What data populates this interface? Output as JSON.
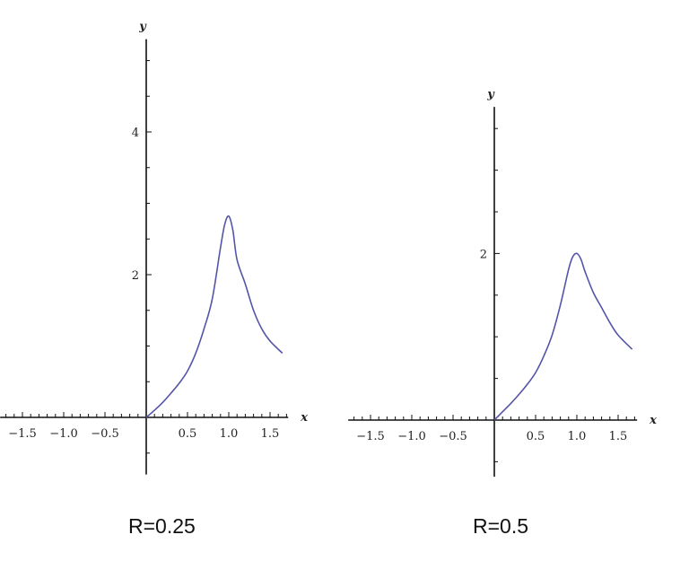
{
  "chart_data": [
    {
      "type": "line",
      "title": "R=0.25",
      "xlabel": "x",
      "ylabel": "y",
      "xlim": [
        -1.77,
        1.72
      ],
      "ylim": [
        -0.8,
        5.3
      ],
      "x_ticks": [
        -1.5,
        -1.0,
        -0.5,
        0.5,
        1.0,
        1.5
      ],
      "x_tick_labels": [
        "−1.5",
        "−1.0",
        "−0.5",
        "0.5",
        "1.0",
        "1.5"
      ],
      "y_ticks": [
        2,
        4
      ],
      "y_tick_labels": [
        "2",
        "4"
      ],
      "grid": false,
      "color": "#5555a8",
      "x": [
        0,
        0.1,
        0.2,
        0.3,
        0.4,
        0.5,
        0.6,
        0.7,
        0.8,
        0.9,
        0.95,
        1.0,
        1.05,
        1.1,
        1.2,
        1.3,
        1.4,
        1.5,
        1.65
      ],
      "y": [
        0,
        0.1,
        0.21,
        0.34,
        0.48,
        0.65,
        0.9,
        1.24,
        1.66,
        2.38,
        2.7,
        2.82,
        2.62,
        2.21,
        1.87,
        1.5,
        1.24,
        1.07,
        0.9
      ]
    },
    {
      "type": "line",
      "title": "R=0.5",
      "xlabel": "x",
      "ylabel": "y",
      "xlim": [
        -1.77,
        1.73
      ],
      "ylim": [
        -0.68,
        3.76
      ],
      "x_ticks": [
        -1.5,
        -1.0,
        -0.5,
        0.5,
        1.0,
        1.5
      ],
      "x_tick_labels": [
        "−1.5",
        "−1.0",
        "−0.5",
        "0.5",
        "1.0",
        "1.5"
      ],
      "y_ticks": [
        2
      ],
      "y_tick_labels": [
        "2"
      ],
      "grid": false,
      "color": "#5555a8",
      "x": [
        0,
        0.1,
        0.2,
        0.3,
        0.4,
        0.5,
        0.6,
        0.7,
        0.8,
        0.9,
        0.95,
        1.0,
        1.05,
        1.1,
        1.2,
        1.3,
        1.4,
        1.5,
        1.67
      ],
      "y": [
        0,
        0.1,
        0.2,
        0.31,
        0.43,
        0.57,
        0.77,
        1.02,
        1.38,
        1.81,
        1.96,
        2.0,
        1.93,
        1.78,
        1.53,
        1.35,
        1.17,
        1.02,
        0.85
      ]
    }
  ]
}
